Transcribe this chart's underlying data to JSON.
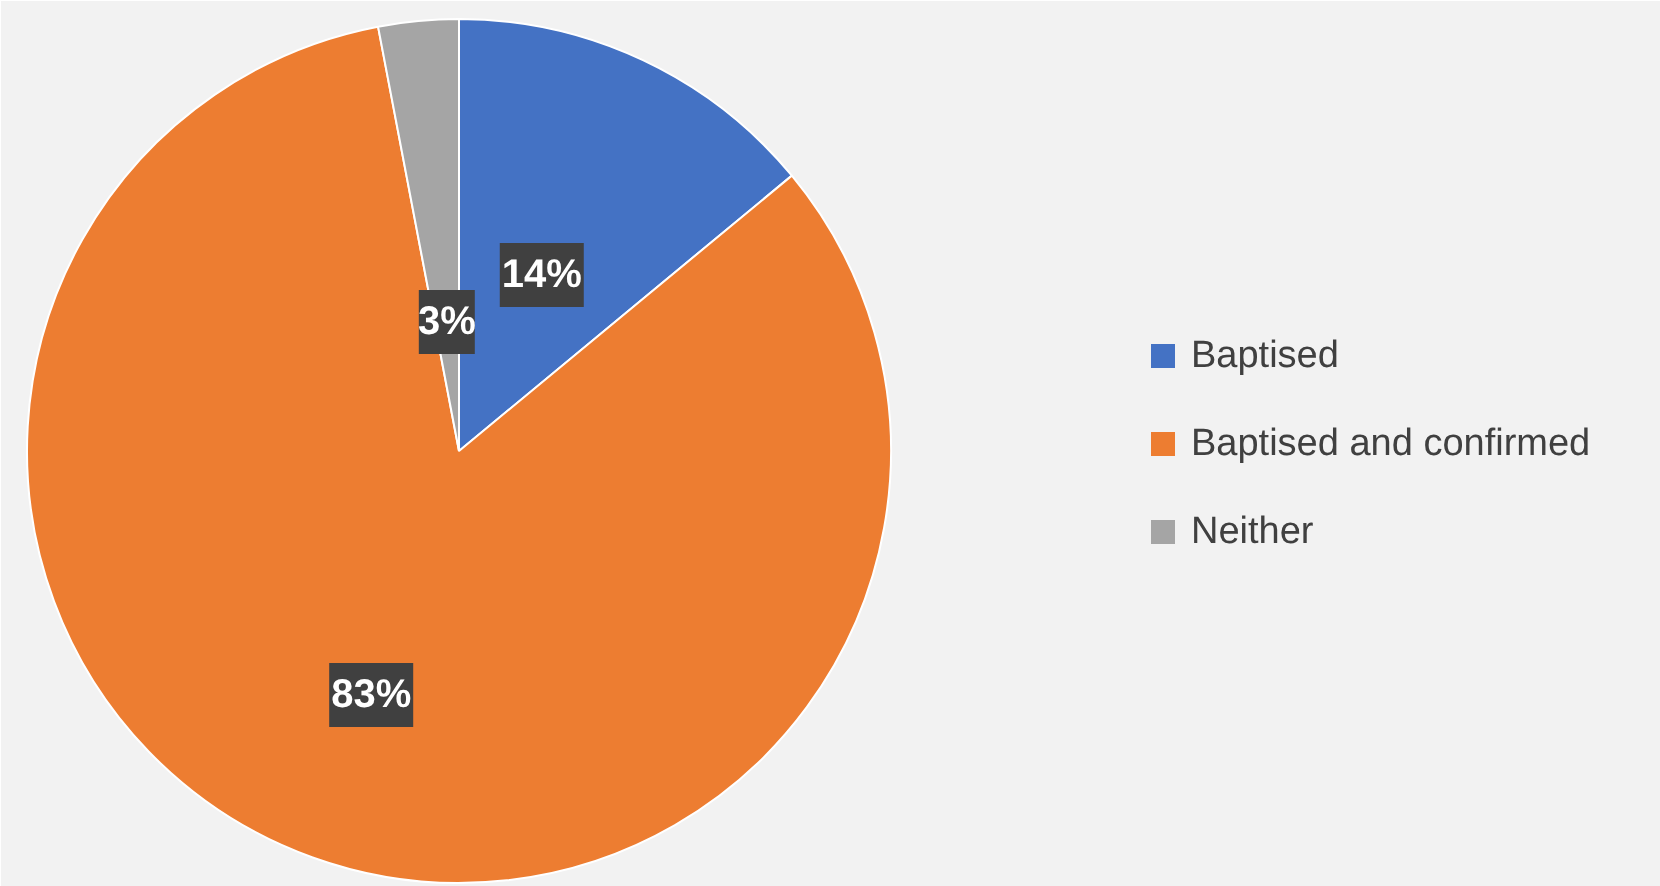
{
  "chart_data": {
    "type": "pie",
    "categories": [
      "Baptised",
      "Baptised and confirmed",
      "Neither"
    ],
    "values": [
      14,
      83,
      3
    ],
    "colors": [
      "#4472c4",
      "#ed7d31",
      "#a5a5a5"
    ],
    "value_labels": [
      "14%",
      "83%",
      "3%"
    ],
    "legend": "right"
  }
}
